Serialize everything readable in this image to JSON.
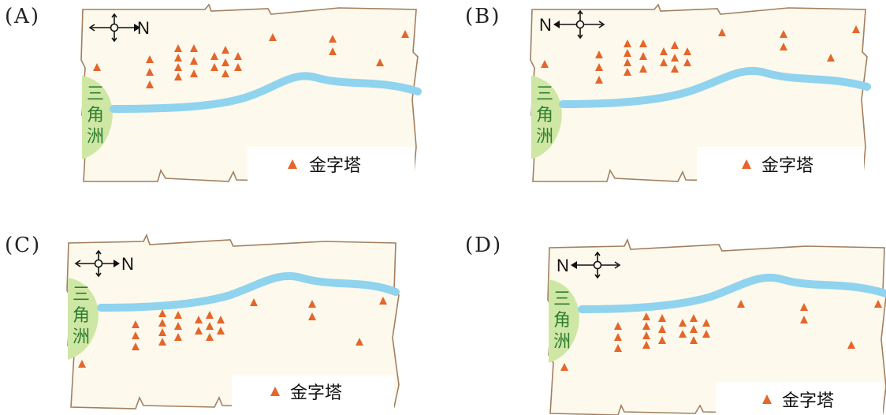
{
  "panels": [
    {
      "label": "(A)",
      "north_direction": "right",
      "delta_side": "left",
      "river": "upper",
      "legend_text": "金字塔"
    },
    {
      "label": "(B)",
      "north_direction": "left",
      "delta_side": "left",
      "river": "upper",
      "legend_text": "金字塔"
    },
    {
      "label": "(C)",
      "north_direction": "right",
      "delta_side": "left",
      "river": "top",
      "legend_text": "金字塔"
    },
    {
      "label": "(D)",
      "north_direction": "left",
      "delta_side": "left",
      "river": "top",
      "legend_text": "金字塔"
    }
  ],
  "delta_label": [
    "三",
    "角",
    "洲"
  ],
  "compass_letter": "N",
  "colors": {
    "parchment": "#fdf9ec",
    "border": "#a27f5f",
    "river": "#8fd3ee",
    "delta": "#cfe7a4",
    "pyramid": "#e4662a",
    "delta_text": "#2e7d32"
  }
}
